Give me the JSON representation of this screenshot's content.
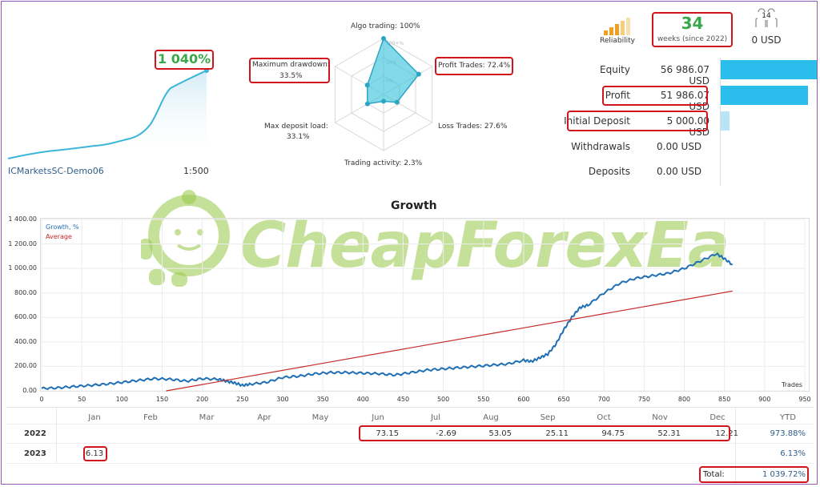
{
  "account": {
    "gain_label": "1 040%",
    "name": "ICMarketsSC-Demo06",
    "leverage": "1:500"
  },
  "radar": {
    "algo_trading": "Algo trading: 100%",
    "profit_trades": "Profit Trades: 72.4%",
    "loss_trades": "Loss Trades: 27.6%",
    "trading_activity": "Trading activity: 2.3%",
    "max_deposit_load_label": "Max deposit load:",
    "max_deposit_load_value": "33.1%",
    "max_drawdown_label": "Maximum drawdown:",
    "max_drawdown_value": "33.5%",
    "ring_100": "100+%",
    "ring_50": "50%",
    "ring_0": "0%",
    "values": {
      "algo_trading": 100,
      "profit_trades": 72.4,
      "loss_trades": 27.6,
      "trading_activity": 2.3,
      "max_deposit_load": 33.1,
      "max_drawdown": 33.5
    }
  },
  "reliability": {
    "label": "Reliability",
    "weeks": "34",
    "weeks_caption": "weeks (since 2022)",
    "subscribers": "14",
    "subscribers_value": "0 USD"
  },
  "stats": [
    {
      "label": "Equity",
      "value": "56 986.07 USD",
      "bar_fraction": 1.0,
      "bar_color": "#2bbdeb"
    },
    {
      "label": "Profit",
      "value": "51 986.07 USD",
      "bar_fraction": 0.912,
      "bar_color": "#2bbdeb"
    },
    {
      "label": "Initial Deposit",
      "value": "5 000.00 USD",
      "bar_fraction": 0.088,
      "bar_color": "#b9e4f5"
    },
    {
      "label": "Withdrawals",
      "value": "0.00 USD",
      "bar_fraction": 0,
      "bar_color": "#2bbdeb"
    },
    {
      "label": "Deposits",
      "value": "0.00 USD",
      "bar_fraction": 0,
      "bar_color": "#2bbdeb"
    }
  ],
  "watermark": "CheapForexEa",
  "chart_data": {
    "type": "line",
    "title": "Growth",
    "xlabel": "Trades",
    "ylabel": "",
    "xlim": [
      0,
      950
    ],
    "ylim": [
      0,
      1400
    ],
    "x_ticks": [
      0,
      50,
      100,
      150,
      200,
      250,
      300,
      350,
      400,
      450,
      500,
      550,
      600,
      650,
      700,
      750,
      800,
      850,
      900,
      950
    ],
    "y_ticks": [
      "0.00",
      "200.00",
      "400.00",
      "600.00",
      "800.00",
      "1 000.00",
      "1 200.00",
      "1 400.00"
    ],
    "y_tick_values": [
      0,
      200,
      400,
      600,
      800,
      1000,
      1200,
      1400
    ],
    "series": [
      {
        "name": "Growth, %",
        "color": "#1f6fb5",
        "x": [
          0,
          20,
          40,
          60,
          80,
          100,
          120,
          140,
          160,
          180,
          200,
          220,
          230,
          240,
          250,
          260,
          280,
          300,
          320,
          340,
          360,
          380,
          400,
          420,
          440,
          460,
          480,
          500,
          520,
          540,
          560,
          580,
          600,
          610,
          620,
          630,
          640,
          650,
          660,
          670,
          680,
          700,
          720,
          740,
          760,
          780,
          800,
          820,
          840,
          850,
          860
        ],
        "y": [
          20,
          25,
          35,
          45,
          55,
          70,
          85,
          100,
          95,
          80,
          100,
          95,
          80,
          65,
          45,
          55,
          70,
          110,
          120,
          140,
          150,
          150,
          145,
          140,
          130,
          150,
          170,
          180,
          190,
          200,
          210,
          220,
          250,
          240,
          270,
          300,
          380,
          500,
          600,
          680,
          700,
          800,
          880,
          920,
          940,
          960,
          1000,
          1060,
          1120,
          1080,
          1030
        ]
      },
      {
        "name": "Average",
        "color": "#c62828",
        "x": [
          155,
          860
        ],
        "y": [
          0,
          815
        ]
      }
    ]
  },
  "table": {
    "months": [
      "Jan",
      "Feb",
      "Mar",
      "Apr",
      "May",
      "Jun",
      "Jul",
      "Aug",
      "Sep",
      "Oct",
      "Nov",
      "Dec"
    ],
    "ytd_label": "YTD",
    "rows": [
      {
        "year": "2022",
        "values": [
          "",
          "",
          "",
          "",
          "",
          "73.15",
          "-2.69",
          "53.05",
          "25.11",
          "94.75",
          "52.31",
          "12.21"
        ],
        "ytd": "973.88%"
      },
      {
        "year": "2023",
        "values": [
          "6.13",
          "",
          "",
          "",
          "",
          "",
          "",
          "",
          "",
          "",
          "",
          ""
        ],
        "ytd": "6.13%"
      }
    ],
    "total_label": "Total:",
    "total_value": "1 039.72%"
  }
}
